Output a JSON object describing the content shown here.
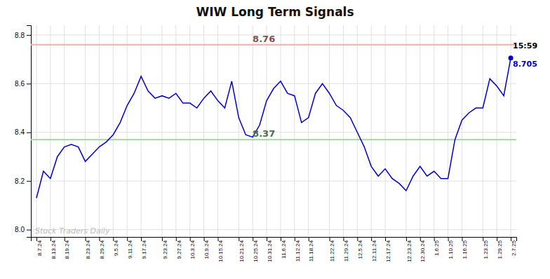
{
  "chart_data": {
    "type": "line",
    "title": "WIW Long Term Signals",
    "categories": [
      "8.7.24",
      null,
      "8.13.24",
      null,
      "8.19.24",
      null,
      null,
      "8.23.24",
      null,
      "8.29.24",
      null,
      "9.5.24",
      null,
      "9.11.24",
      null,
      "9.17.24",
      null,
      null,
      "9.23.24",
      null,
      "9.27.24",
      null,
      "10.3.24",
      null,
      "10.9.24",
      null,
      "10.15.24",
      null,
      null,
      "10.21.24",
      null,
      "10.25.24",
      null,
      "10.31.24",
      null,
      "11.6.24",
      null,
      "11.12.24",
      null,
      "11.18.24",
      null,
      null,
      "11.22.24",
      null,
      "11.29.24",
      null,
      "12.5.24",
      null,
      "12.11.24",
      null,
      "12.17.24",
      null,
      null,
      "12.23.24",
      null,
      "12.30.24",
      null,
      "1.6.25",
      null,
      "1.10.25",
      null,
      "1.16.25",
      null,
      null,
      "1.23.25",
      null,
      "1.29.25",
      null,
      "2.7.25"
    ],
    "values": [
      8.13,
      8.24,
      8.21,
      8.3,
      8.34,
      8.35,
      8.34,
      8.28,
      8.31,
      8.34,
      8.36,
      8.39,
      8.44,
      8.51,
      8.56,
      8.63,
      8.57,
      8.54,
      8.55,
      8.54,
      8.56,
      8.52,
      8.52,
      8.5,
      8.54,
      8.57,
      8.53,
      8.5,
      8.61,
      8.46,
      8.39,
      8.38,
      8.43,
      8.53,
      8.58,
      8.61,
      8.56,
      8.55,
      8.44,
      8.46,
      8.56,
      8.6,
      8.56,
      8.51,
      8.49,
      8.46,
      8.4,
      8.34,
      8.26,
      8.22,
      8.25,
      8.21,
      8.19,
      8.16,
      8.22,
      8.26,
      8.22,
      8.24,
      8.21,
      8.21,
      8.37,
      8.45,
      8.48,
      8.5,
      8.5,
      8.62,
      8.59,
      8.55,
      8.705
    ],
    "color": "#0000cc",
    "reference_lines": [
      {
        "value": 8.76,
        "label": "8.76",
        "color": "#ffaaaa"
      },
      {
        "value": 8.37,
        "label": "8.37",
        "color": "#99dd99"
      }
    ],
    "annotations": [
      {
        "text": "15:59",
        "color": "#000000"
      },
      {
        "text": "8.705",
        "value": 8.705,
        "color": "#0000cc"
      },
      {
        "text": "Stock Traders Daily",
        "color": "#bbbbbb"
      }
    ],
    "ylim": [
      7.97,
      8.84
    ],
    "yticks": [
      {
        "value": 8.0,
        "label": "8.0"
      },
      8.2,
      8.4,
      8.6,
      8.8
    ],
    "grid": true
  }
}
